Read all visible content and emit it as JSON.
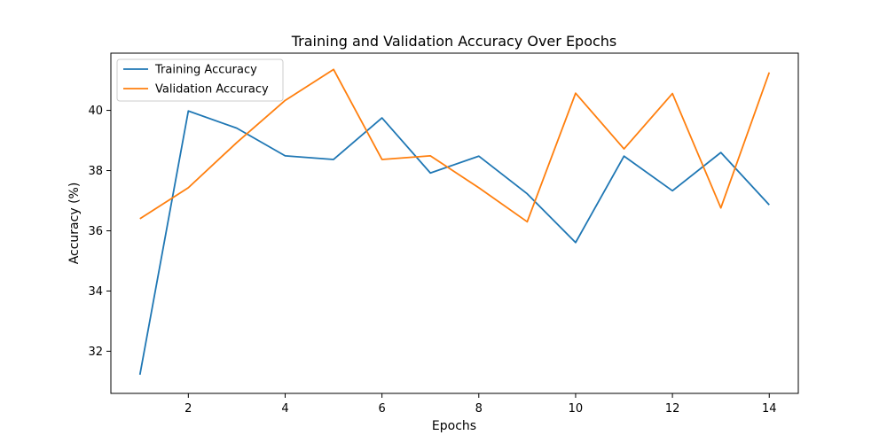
{
  "chart_data": {
    "type": "line",
    "title": "Training and Validation Accuracy Over Epochs",
    "xlabel": "Epochs",
    "ylabel": "Accuracy (%)",
    "x": [
      1,
      2,
      3,
      4,
      5,
      6,
      7,
      8,
      9,
      10,
      11,
      12,
      13,
      14
    ],
    "xlim": [
      0.4,
      14.6
    ],
    "ylim": [
      30.6,
      41.9
    ],
    "xticks": [
      2,
      4,
      6,
      8,
      10,
      12,
      14
    ],
    "yticks": [
      32,
      34,
      36,
      38,
      40
    ],
    "grid": false,
    "legend_position": "upper-left",
    "series": [
      {
        "name": "Training Accuracy",
        "color": "#1f77b4",
        "values": [
          31.22,
          39.98,
          39.41,
          38.49,
          38.37,
          39.75,
          37.92,
          38.48,
          37.23,
          35.61,
          38.48,
          37.33,
          38.6,
          36.86
        ]
      },
      {
        "name": "Validation Accuracy",
        "color": "#ff7f0e",
        "values": [
          36.4,
          37.43,
          38.93,
          40.33,
          41.36,
          38.37,
          38.49,
          37.43,
          36.3,
          40.57,
          38.72,
          40.56,
          36.76,
          41.26
        ]
      }
    ]
  }
}
